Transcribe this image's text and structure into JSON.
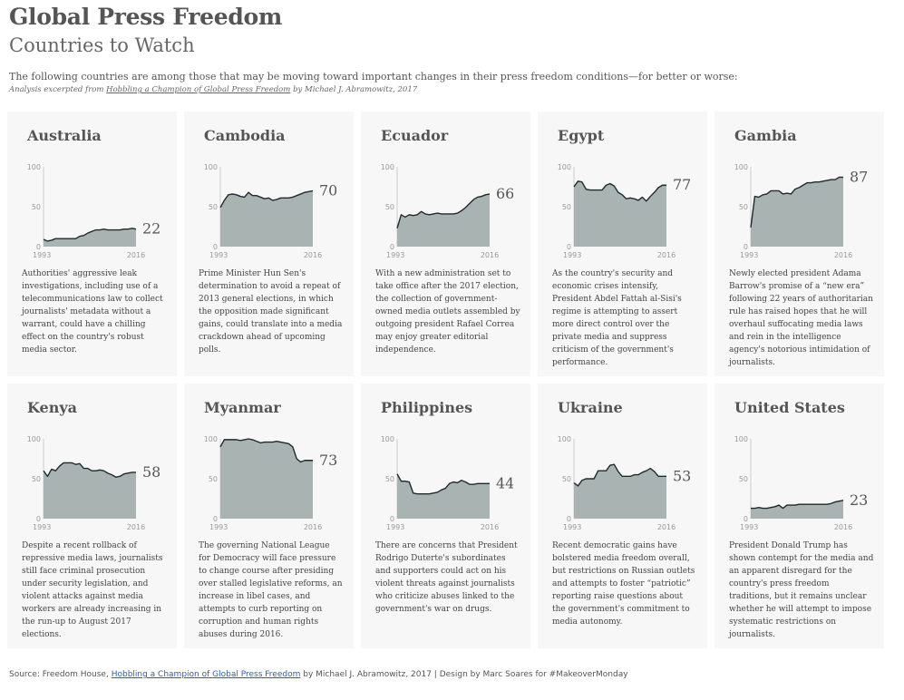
{
  "header": {
    "title": "Global Press Freedom",
    "subtitle": "Countries to Watch",
    "intro": "The following countries are among those that may be moving toward important changes in their press freedom conditions—for better or worse:",
    "credit_prefix": "Analysis excerpted from",
    "credit_book": "Hobbling a Champion of Global Press Freedom",
    "credit_suffix": "by Michael J. Abramowitz, 2017"
  },
  "footer": {
    "prefix": "Source: Freedom House,",
    "link": "Hobbling a Champion of Global Press Freedom",
    "suffix": "by Michael J. Abramowitz, 2017  |  Design by Marc Soares for #MakeoverMonday"
  },
  "colors": {
    "area_fill": "#a9b3b2",
    "line": "#1c2b2e",
    "card_bg": "#f7f7f7",
    "axis": "#cccccc"
  },
  "chart_data": [
    {
      "type": "area",
      "country": "Australia",
      "x_labels": [
        "1993",
        "2016"
      ],
      "y_ticks": [
        0,
        50,
        100
      ],
      "ylim": [
        0,
        100
      ],
      "end_value": "22",
      "x": [
        1993,
        1994,
        1995,
        1996,
        1997,
        1998,
        1999,
        2000,
        2001,
        2002,
        2003,
        2004,
        2005,
        2006,
        2007,
        2008,
        2009,
        2010,
        2011,
        2012,
        2013,
        2014,
        2015,
        2016
      ],
      "values": [
        9,
        7,
        8,
        10,
        10,
        10,
        10,
        10,
        10,
        13,
        14,
        17,
        19,
        21,
        21,
        22,
        21,
        21,
        21,
        21,
        22,
        22,
        23,
        22
      ],
      "description": "Authorities' aggressive leak investigations, including use of a telecommunications law to collect journalists' metadata without a warrant, could have a chilling effect on the country's robust media sector."
    },
    {
      "type": "area",
      "country": "Cambodia",
      "x_labels": [
        "1993",
        "2016"
      ],
      "y_ticks": [
        0,
        50,
        100
      ],
      "ylim": [
        0,
        100
      ],
      "end_value": "70",
      "x": [
        1993,
        1994,
        1995,
        1996,
        1997,
        1998,
        1999,
        2000,
        2001,
        2002,
        2003,
        2004,
        2005,
        2006,
        2007,
        2008,
        2009,
        2010,
        2011,
        2012,
        2013,
        2014,
        2015,
        2016
      ],
      "values": [
        49,
        58,
        65,
        66,
        65,
        63,
        62,
        68,
        64,
        64,
        62,
        60,
        61,
        58,
        59,
        61,
        61,
        61,
        62,
        64,
        66,
        68,
        69,
        70
      ],
      "description": "Prime Minister Hun Sen's determination to avoid a repeat of 2013 general elections, in which the opposition made significant gains, could translate into a media crackdown ahead of upcoming polls."
    },
    {
      "type": "area",
      "country": "Ecuador",
      "x_labels": [
        "1993",
        "2016"
      ],
      "y_ticks": [
        0,
        50,
        100
      ],
      "ylim": [
        0,
        100
      ],
      "end_value": "66",
      "x": [
        1993,
        1994,
        1995,
        1996,
        1997,
        1998,
        1999,
        2000,
        2001,
        2002,
        2003,
        2004,
        2005,
        2006,
        2007,
        2008,
        2009,
        2010,
        2011,
        2012,
        2013,
        2014,
        2015,
        2016
      ],
      "values": [
        23,
        40,
        37,
        40,
        39,
        40,
        44,
        41,
        40,
        41,
        42,
        41,
        41,
        41,
        41,
        42,
        45,
        49,
        54,
        59,
        62,
        63,
        65,
        66
      ],
      "description": "With a new administration set to take office after the 2017 election, the collection of government-owned media outlets assembled by outgoing president Rafael Correa may enjoy greater editorial independence."
    },
    {
      "type": "area",
      "country": "Egypt",
      "x_labels": [
        "1993",
        "2016"
      ],
      "y_ticks": [
        0,
        50,
        100
      ],
      "ylim": [
        0,
        100
      ],
      "end_value": "77",
      "x": [
        1993,
        1994,
        1995,
        1996,
        1997,
        1998,
        1999,
        2000,
        2001,
        2002,
        2003,
        2004,
        2005,
        2006,
        2007,
        2008,
        2009,
        2010,
        2011,
        2012,
        2013,
        2014,
        2015,
        2016
      ],
      "values": [
        75,
        82,
        81,
        72,
        71,
        71,
        71,
        71,
        77,
        79,
        76,
        68,
        65,
        60,
        61,
        60,
        58,
        62,
        57,
        63,
        68,
        74,
        77,
        77
      ],
      "description": "As the country's security and economic crises intensify, President Abdel Fattah al-Sisi's regime is attempting to assert more direct control over the private media and suppress criticism of the government's performance."
    },
    {
      "type": "area",
      "country": "Gambia",
      "x_labels": [
        "1993",
        "2016"
      ],
      "y_ticks": [
        0,
        50,
        100
      ],
      "ylim": [
        0,
        100
      ],
      "end_value": "87",
      "x": [
        1993,
        1994,
        1995,
        1996,
        1997,
        1998,
        1999,
        2000,
        2001,
        2002,
        2003,
        2004,
        2005,
        2006,
        2007,
        2008,
        2009,
        2010,
        2011,
        2012,
        2013,
        2014,
        2015,
        2016
      ],
      "values": [
        24,
        63,
        62,
        65,
        66,
        70,
        70,
        70,
        66,
        67,
        66,
        72,
        74,
        77,
        80,
        80,
        81,
        81,
        82,
        83,
        84,
        84,
        87,
        87
      ],
      "description": "Newly elected president Adama Barrow's promise of a “new era” following 22 years of authoritarian rule has raised hopes that he will overhaul suffocating media laws and rein in the intelligence agency's notorious intimidation of journalists."
    },
    {
      "type": "area",
      "country": "Kenya",
      "x_labels": [
        "1993",
        "2016"
      ],
      "y_ticks": [
        0,
        50,
        100
      ],
      "ylim": [
        0,
        100
      ],
      "end_value": "58",
      "x": [
        1993,
        1994,
        1995,
        1996,
        1997,
        1998,
        1999,
        2000,
        2001,
        2002,
        2003,
        2004,
        2005,
        2006,
        2007,
        2008,
        2009,
        2010,
        2011,
        2012,
        2013,
        2014,
        2015,
        2016
      ],
      "values": [
        60,
        53,
        62,
        60,
        66,
        70,
        70,
        70,
        68,
        69,
        63,
        63,
        60,
        60,
        61,
        60,
        57,
        55,
        52,
        53,
        56,
        57,
        58,
        58
      ],
      "description": "Despite a recent rollback of repressive media laws, journalists still face criminal prosecution under security legislation, and violent attacks against media workers are already increasing in the run-up to August 2017 elections."
    },
    {
      "type": "area",
      "country": "Myanmar",
      "x_labels": [
        "1993",
        "2016"
      ],
      "y_ticks": [
        0,
        50,
        100
      ],
      "ylim": [
        0,
        100
      ],
      "end_value": "73",
      "x": [
        1993,
        1994,
        1995,
        1996,
        1997,
        1998,
        1999,
        2000,
        2001,
        2002,
        2003,
        2004,
        2005,
        2006,
        2007,
        2008,
        2009,
        2010,
        2011,
        2012,
        2013,
        2014,
        2015,
        2016
      ],
      "values": [
        90,
        99,
        99,
        99,
        99,
        98,
        99,
        100,
        99,
        97,
        95,
        96,
        96,
        96,
        97,
        96,
        95,
        94,
        90,
        75,
        71,
        73,
        73,
        73
      ],
      "description": "The governing National League for Democracy will face pressure to change course after presiding over stalled legislative reforms, an increase in libel cases, and attempts to curb reporting on corruption and human rights abuses during 2016."
    },
    {
      "type": "area",
      "country": "Philippines",
      "x_labels": [
        "1993",
        "2016"
      ],
      "y_ticks": [
        0,
        50,
        100
      ],
      "ylim": [
        0,
        100
      ],
      "end_value": "44",
      "x": [
        1993,
        1994,
        1995,
        1996,
        1997,
        1998,
        1999,
        2000,
        2001,
        2002,
        2003,
        2004,
        2005,
        2006,
        2007,
        2008,
        2009,
        2010,
        2011,
        2012,
        2013,
        2014,
        2015,
        2016
      ],
      "values": [
        56,
        47,
        47,
        46,
        32,
        31,
        31,
        31,
        31,
        32,
        33,
        36,
        38,
        44,
        46,
        45,
        48,
        46,
        43,
        43,
        44,
        44,
        44,
        44
      ],
      "description": "There are concerns that President Rodrigo Duterte's subordinates and supporters could act on his violent threats against journalists who criticize abuses linked to the government's war on drugs."
    },
    {
      "type": "area",
      "country": "Ukraine",
      "x_labels": [
        "1993",
        "2016"
      ],
      "y_ticks": [
        0,
        50,
        100
      ],
      "ylim": [
        0,
        100
      ],
      "end_value": "53",
      "x": [
        1993,
        1994,
        1995,
        1996,
        1997,
        1998,
        1999,
        2000,
        2001,
        2002,
        2003,
        2004,
        2005,
        2006,
        2007,
        2008,
        2009,
        2010,
        2011,
        2012,
        2013,
        2014,
        2015,
        2016
      ],
      "values": [
        45,
        41,
        48,
        50,
        50,
        50,
        60,
        60,
        60,
        67,
        68,
        59,
        53,
        53,
        53,
        55,
        55,
        58,
        60,
        63,
        59,
        53,
        53,
        53
      ],
      "description": "Recent democratic gains have bolstered media freedom overall, but restrictions on Russian outlets and attempts to foster “patriotic” reporting raise questions about the government's commitment to media autonomy."
    },
    {
      "type": "area",
      "country": "United States",
      "x_labels": [
        "1993",
        "2016"
      ],
      "y_ticks": [
        0,
        50,
        100
      ],
      "ylim": [
        0,
        100
      ],
      "end_value": "23",
      "x": [
        1993,
        1994,
        1995,
        1996,
        1997,
        1998,
        1999,
        2000,
        2001,
        2002,
        2003,
        2004,
        2005,
        2006,
        2007,
        2008,
        2009,
        2010,
        2011,
        2012,
        2013,
        2014,
        2015,
        2016
      ],
      "values": [
        13,
        13,
        14,
        13,
        13,
        14,
        15,
        17,
        13,
        17,
        17,
        17,
        18,
        18,
        18,
        18,
        18,
        18,
        18,
        18,
        19,
        21,
        22,
        23
      ],
      "description": "President Donald Trump has shown contempt for the media and an apparent disregard for the country's press freedom traditions, but it remains unclear whether he will attempt to impose systematic restrictions on journalists."
    }
  ]
}
